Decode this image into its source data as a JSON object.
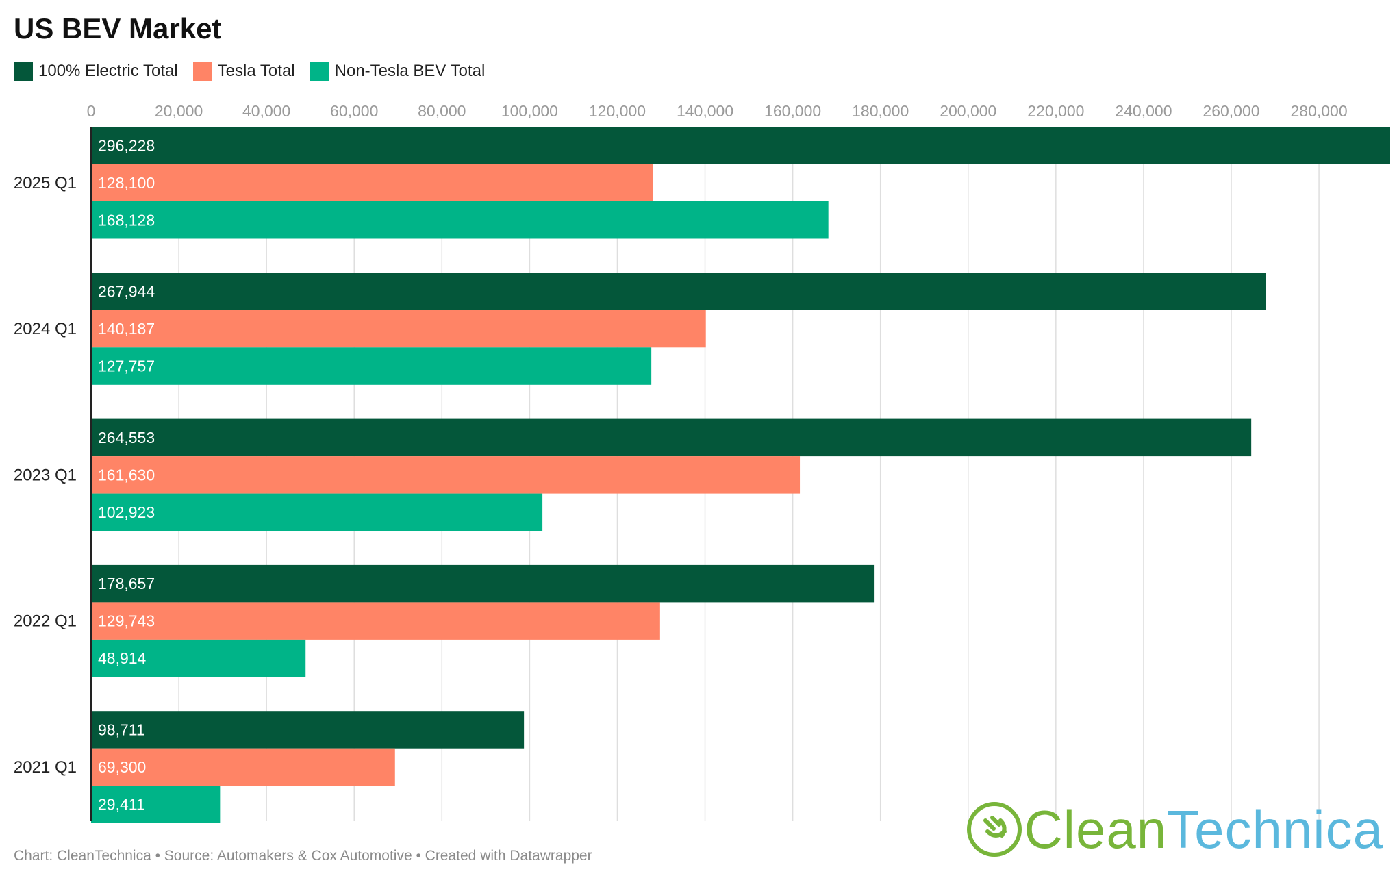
{
  "title": "US BEV Market",
  "footer": "Chart: CleanTechnica • Source: Automakers & Cox Automotive • Created with Datawrapper",
  "logo": {
    "part1": "Clean",
    "part2": "Technica",
    "color1": "#78b53a",
    "color2": "#5bb8dd"
  },
  "chart_data": {
    "type": "bar",
    "orientation": "horizontal",
    "title": "US BEV Market",
    "categories": [
      "2025 Q1",
      "2024 Q1",
      "2023 Q1",
      "2022 Q1",
      "2021 Q1"
    ],
    "series": [
      {
        "name": "100% Electric Total",
        "color": "#04573a",
        "values": [
          296228,
          267944,
          264553,
          178657,
          98711
        ],
        "labels": [
          "296,228",
          "267,944",
          "264,553",
          "178,657",
          "98,711"
        ]
      },
      {
        "name": "Tesla Total",
        "color": "#ff8466",
        "values": [
          128100,
          140187,
          161630,
          129743,
          69300
        ],
        "labels": [
          "128,100",
          "140,187",
          "161,630",
          "129,743",
          "69,300"
        ]
      },
      {
        "name": "Non-Tesla BEV Total",
        "color": "#00b488",
        "values": [
          168128,
          127757,
          102923,
          48914,
          29411
        ],
        "labels": [
          "168,128",
          "127,757",
          "102,923",
          "48,914",
          "29,411"
        ]
      }
    ],
    "xlim": [
      0,
      296228
    ],
    "xticks": [
      0,
      20000,
      40000,
      60000,
      80000,
      100000,
      120000,
      140000,
      160000,
      180000,
      200000,
      220000,
      240000,
      260000,
      280000
    ],
    "xtick_labels": [
      "0",
      "20,000",
      "40,000",
      "60,000",
      "80,000",
      "100,000",
      "120,000",
      "140,000",
      "160,000",
      "180,000",
      "200,000",
      "220,000",
      "240,000",
      "260,000",
      "280,000"
    ],
    "grid": true,
    "legend": "top-left",
    "xaxis_position": "top"
  }
}
